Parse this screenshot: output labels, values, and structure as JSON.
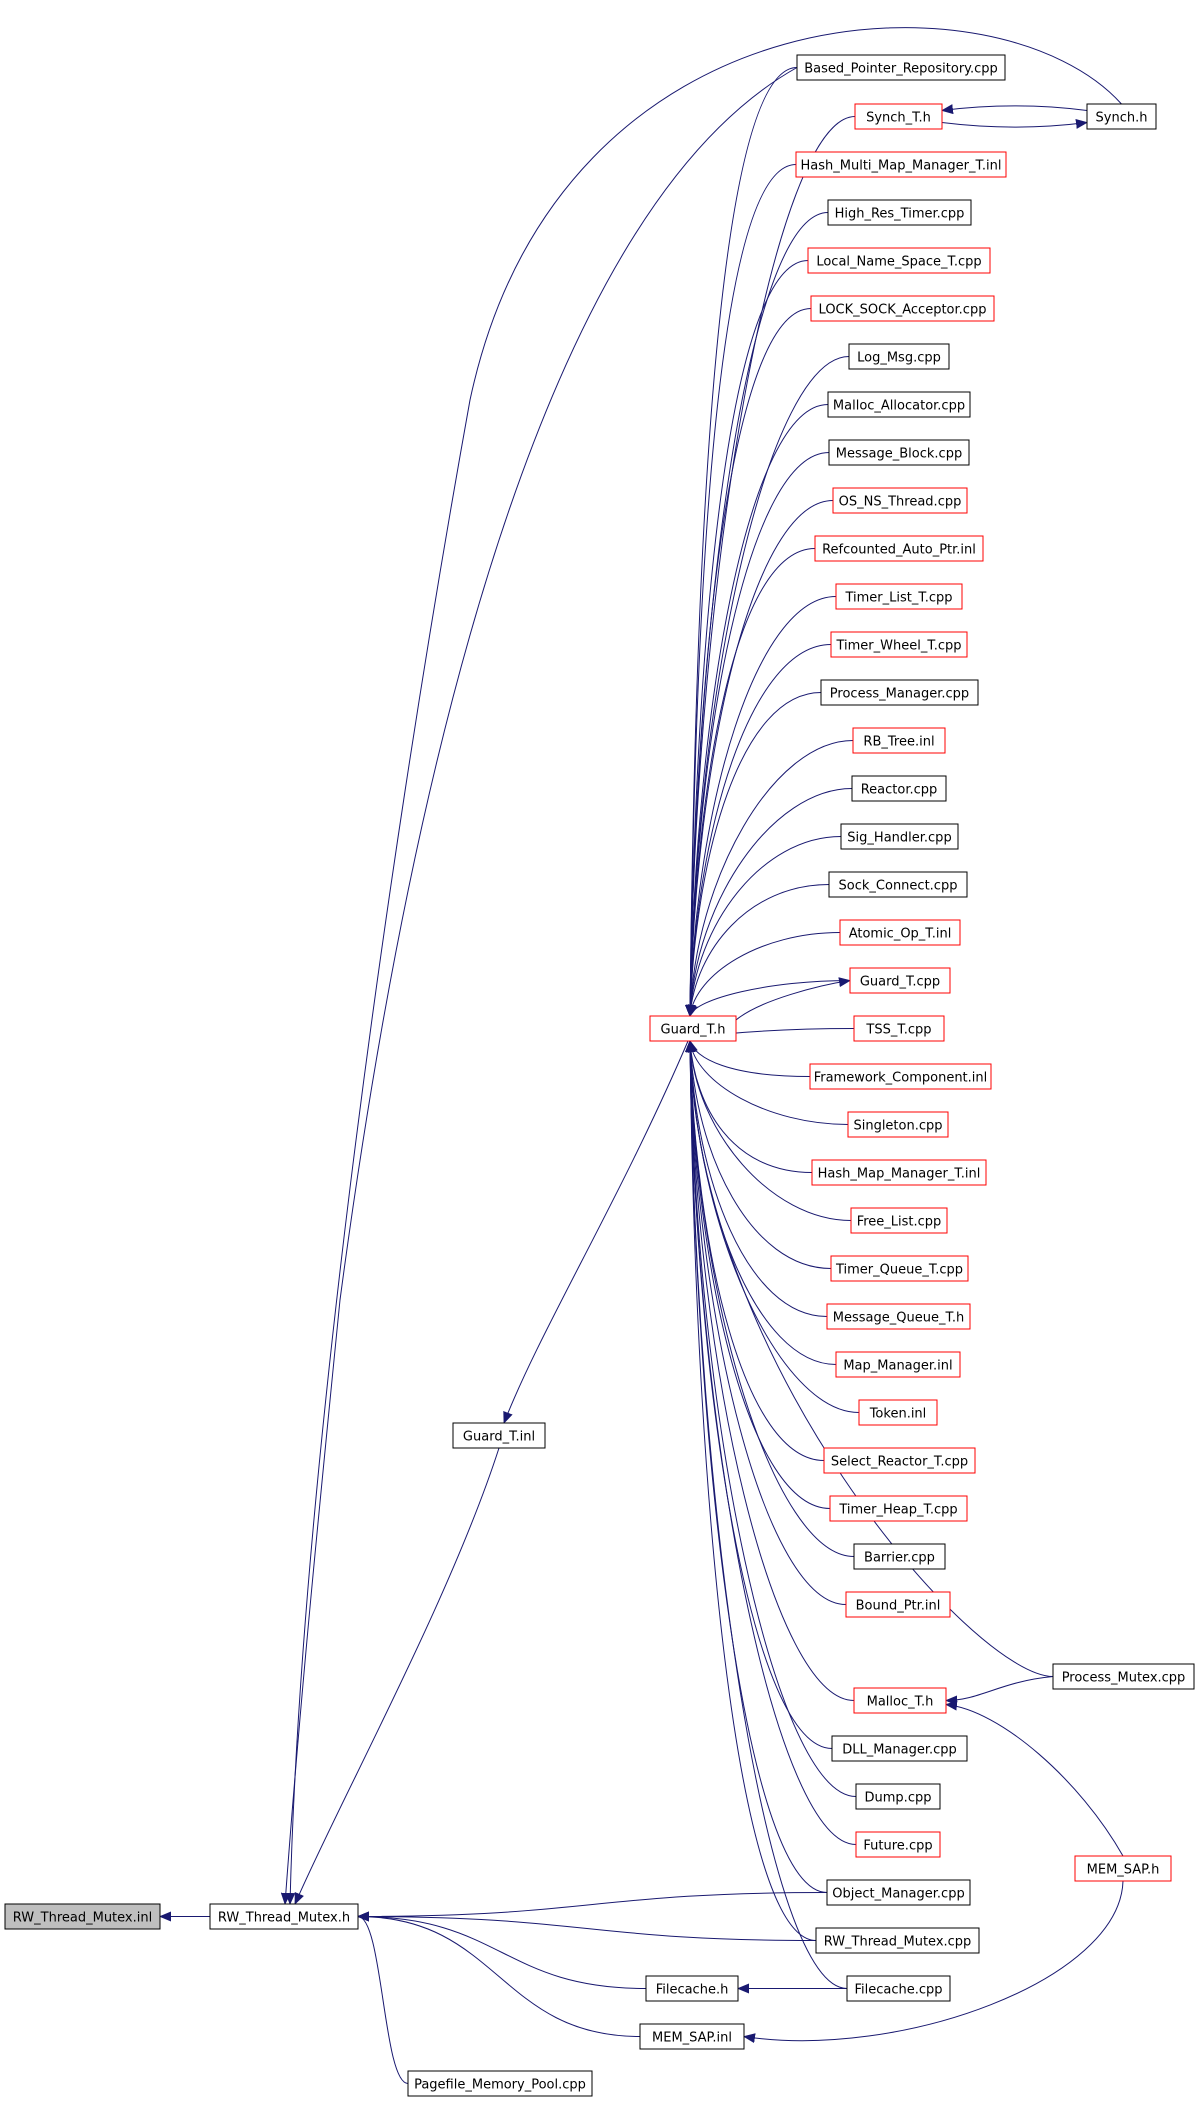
{
  "colors": {
    "edge": "#191970",
    "arrow": "#191970",
    "border_black": "#000000",
    "border_red": "#ff0000",
    "root_fill": "#bfbfbf",
    "node_fill": "#ffffff"
  },
  "nodes": [
    {
      "id": "root",
      "label": "RW_Thread_Mutex.inl",
      "border": "black",
      "fill": "gray"
    },
    {
      "id": "rwtm_h",
      "label": "RW_Thread_Mutex.h",
      "border": "black"
    },
    {
      "id": "based_ptr_repo",
      "label": "Based_Pointer_Repository.cpp",
      "border": "black"
    },
    {
      "id": "synch_t_h",
      "label": "Synch_T.h",
      "border": "red"
    },
    {
      "id": "synch_h",
      "label": "Synch.h",
      "border": "black"
    },
    {
      "id": "hash_multi_map",
      "label": "Hash_Multi_Map_Manager_T.inl",
      "border": "red"
    },
    {
      "id": "high_res_timer",
      "label": "High_Res_Timer.cpp",
      "border": "black"
    },
    {
      "id": "local_name_space",
      "label": "Local_Name_Space_T.cpp",
      "border": "red"
    },
    {
      "id": "lock_sock",
      "label": "LOCK_SOCK_Acceptor.cpp",
      "border": "red"
    },
    {
      "id": "log_msg",
      "label": "Log_Msg.cpp",
      "border": "black"
    },
    {
      "id": "malloc_alloc",
      "label": "Malloc_Allocator.cpp",
      "border": "black"
    },
    {
      "id": "message_block",
      "label": "Message_Block.cpp",
      "border": "black"
    },
    {
      "id": "os_ns_thread",
      "label": "OS_NS_Thread.cpp",
      "border": "red"
    },
    {
      "id": "refcounted",
      "label": "Refcounted_Auto_Ptr.inl",
      "border": "red"
    },
    {
      "id": "timer_list",
      "label": "Timer_List_T.cpp",
      "border": "red"
    },
    {
      "id": "timer_wheel",
      "label": "Timer_Wheel_T.cpp",
      "border": "red"
    },
    {
      "id": "process_manager",
      "label": "Process_Manager.cpp",
      "border": "black"
    },
    {
      "id": "rb_tree",
      "label": "RB_Tree.inl",
      "border": "red"
    },
    {
      "id": "reactor",
      "label": "Reactor.cpp",
      "border": "black"
    },
    {
      "id": "sig_handler",
      "label": "Sig_Handler.cpp",
      "border": "black"
    },
    {
      "id": "sock_connect",
      "label": "Sock_Connect.cpp",
      "border": "black"
    },
    {
      "id": "atomic_op",
      "label": "Atomic_Op_T.inl",
      "border": "red"
    },
    {
      "id": "guard_t_cpp",
      "label": "Guard_T.cpp",
      "border": "red"
    },
    {
      "id": "guard_t_h",
      "label": "Guard_T.h",
      "border": "red"
    },
    {
      "id": "tss_t",
      "label": "TSS_T.cpp",
      "border": "red"
    },
    {
      "id": "framework_comp",
      "label": "Framework_Component.inl",
      "border": "red"
    },
    {
      "id": "singleton",
      "label": "Singleton.cpp",
      "border": "red"
    },
    {
      "id": "hash_map_mgr",
      "label": "Hash_Map_Manager_T.inl",
      "border": "red"
    },
    {
      "id": "free_list",
      "label": "Free_List.cpp",
      "border": "red"
    },
    {
      "id": "timer_queue",
      "label": "Timer_Queue_T.cpp",
      "border": "red"
    },
    {
      "id": "message_queue",
      "label": "Message_Queue_T.h",
      "border": "red"
    },
    {
      "id": "map_manager",
      "label": "Map_Manager.inl",
      "border": "red"
    },
    {
      "id": "token",
      "label": "Token.inl",
      "border": "red"
    },
    {
      "id": "select_reactor",
      "label": "Select_Reactor_T.cpp",
      "border": "red"
    },
    {
      "id": "timer_heap",
      "label": "Timer_Heap_T.cpp",
      "border": "red"
    },
    {
      "id": "barrier",
      "label": "Barrier.cpp",
      "border": "black"
    },
    {
      "id": "bound_ptr",
      "label": "Bound_Ptr.inl",
      "border": "red"
    },
    {
      "id": "guard_t_inl",
      "label": "Guard_T.inl",
      "border": "black"
    },
    {
      "id": "process_mutex",
      "label": "Process_Mutex.cpp",
      "border": "black"
    },
    {
      "id": "malloc_t_h",
      "label": "Malloc_T.h",
      "border": "red"
    },
    {
      "id": "dll_manager",
      "label": "DLL_Manager.cpp",
      "border": "black"
    },
    {
      "id": "dump",
      "label": "Dump.cpp",
      "border": "black"
    },
    {
      "id": "future",
      "label": "Future.cpp",
      "border": "red"
    },
    {
      "id": "mem_sap_h",
      "label": "MEM_SAP.h",
      "border": "red"
    },
    {
      "id": "object_manager",
      "label": "Object_Manager.cpp",
      "border": "black"
    },
    {
      "id": "rwtm_cpp",
      "label": "RW_Thread_Mutex.cpp",
      "border": "black"
    },
    {
      "id": "filecache_h",
      "label": "Filecache.h",
      "border": "black"
    },
    {
      "id": "filecache_cpp",
      "label": "Filecache.cpp",
      "border": "black"
    },
    {
      "id": "mem_sap_inl",
      "label": "MEM_SAP.inl",
      "border": "black"
    },
    {
      "id": "pagefile_pool",
      "label": "Pagefile_Memory_Pool.cpp",
      "border": "black"
    }
  ],
  "edges": [
    {
      "from": "rwtm_h",
      "to": "root"
    },
    {
      "from": "based_ptr_repo",
      "to": "rwtm_h"
    },
    {
      "from": "synch_h",
      "to": "rwtm_h"
    },
    {
      "from": "guard_t_inl",
      "to": "rwtm_h"
    },
    {
      "from": "object_manager",
      "to": "rwtm_h"
    },
    {
      "from": "rwtm_cpp",
      "to": "rwtm_h"
    },
    {
      "from": "filecache_h",
      "to": "rwtm_h"
    },
    {
      "from": "mem_sap_inl",
      "to": "rwtm_h"
    },
    {
      "from": "pagefile_pool",
      "to": "rwtm_h"
    },
    {
      "from": "synch_h",
      "to": "synch_t_h"
    },
    {
      "from": "synch_t_h",
      "to": "synch_h"
    },
    {
      "from": "guard_t_h",
      "to": "guard_t_inl"
    },
    {
      "from": "based_ptr_repo",
      "to": "guard_t_h"
    },
    {
      "from": "synch_t_h",
      "to": "guard_t_h"
    },
    {
      "from": "hash_multi_map",
      "to": "guard_t_h"
    },
    {
      "from": "high_res_timer",
      "to": "guard_t_h"
    },
    {
      "from": "local_name_space",
      "to": "guard_t_h"
    },
    {
      "from": "lock_sock",
      "to": "guard_t_h"
    },
    {
      "from": "log_msg",
      "to": "guard_t_h"
    },
    {
      "from": "malloc_alloc",
      "to": "guard_t_h"
    },
    {
      "from": "message_block",
      "to": "guard_t_h"
    },
    {
      "from": "os_ns_thread",
      "to": "guard_t_h"
    },
    {
      "from": "refcounted",
      "to": "guard_t_h"
    },
    {
      "from": "timer_list",
      "to": "guard_t_h"
    },
    {
      "from": "timer_wheel",
      "to": "guard_t_h"
    },
    {
      "from": "process_manager",
      "to": "guard_t_h"
    },
    {
      "from": "rb_tree",
      "to": "guard_t_h"
    },
    {
      "from": "reactor",
      "to": "guard_t_h"
    },
    {
      "from": "sig_handler",
      "to": "guard_t_h"
    },
    {
      "from": "sock_connect",
      "to": "guard_t_h"
    },
    {
      "from": "atomic_op",
      "to": "guard_t_h"
    },
    {
      "from": "guard_t_cpp",
      "to": "guard_t_h"
    },
    {
      "from": "guard_t_h",
      "to": "guard_t_cpp"
    },
    {
      "from": "tss_t",
      "to": "guard_t_h"
    },
    {
      "from": "framework_comp",
      "to": "guard_t_h"
    },
    {
      "from": "singleton",
      "to": "guard_t_h"
    },
    {
      "from": "hash_map_mgr",
      "to": "guard_t_h"
    },
    {
      "from": "free_list",
      "to": "guard_t_h"
    },
    {
      "from": "timer_queue",
      "to": "guard_t_h"
    },
    {
      "from": "message_queue",
      "to": "guard_t_h"
    },
    {
      "from": "map_manager",
      "to": "guard_t_h"
    },
    {
      "from": "token",
      "to": "guard_t_h"
    },
    {
      "from": "select_reactor",
      "to": "guard_t_h"
    },
    {
      "from": "timer_heap",
      "to": "guard_t_h"
    },
    {
      "from": "barrier",
      "to": "guard_t_h"
    },
    {
      "from": "bound_ptr",
      "to": "guard_t_h"
    },
    {
      "from": "process_mutex",
      "to": "guard_t_h"
    },
    {
      "from": "malloc_t_h",
      "to": "guard_t_h"
    },
    {
      "from": "dll_manager",
      "to": "guard_t_h"
    },
    {
      "from": "dump",
      "to": "guard_t_h"
    },
    {
      "from": "future",
      "to": "guard_t_h"
    },
    {
      "from": "object_manager",
      "to": "guard_t_h"
    },
    {
      "from": "rwtm_cpp",
      "to": "guard_t_h"
    },
    {
      "from": "filecache_cpp",
      "to": "guard_t_h"
    },
    {
      "from": "process_mutex",
      "to": "malloc_t_h"
    },
    {
      "from": "mem_sap_h",
      "to": "malloc_t_h"
    },
    {
      "from": "filecache_cpp",
      "to": "filecache_h"
    },
    {
      "from": "mem_sap_h",
      "to": "mem_sap_inl"
    }
  ]
}
